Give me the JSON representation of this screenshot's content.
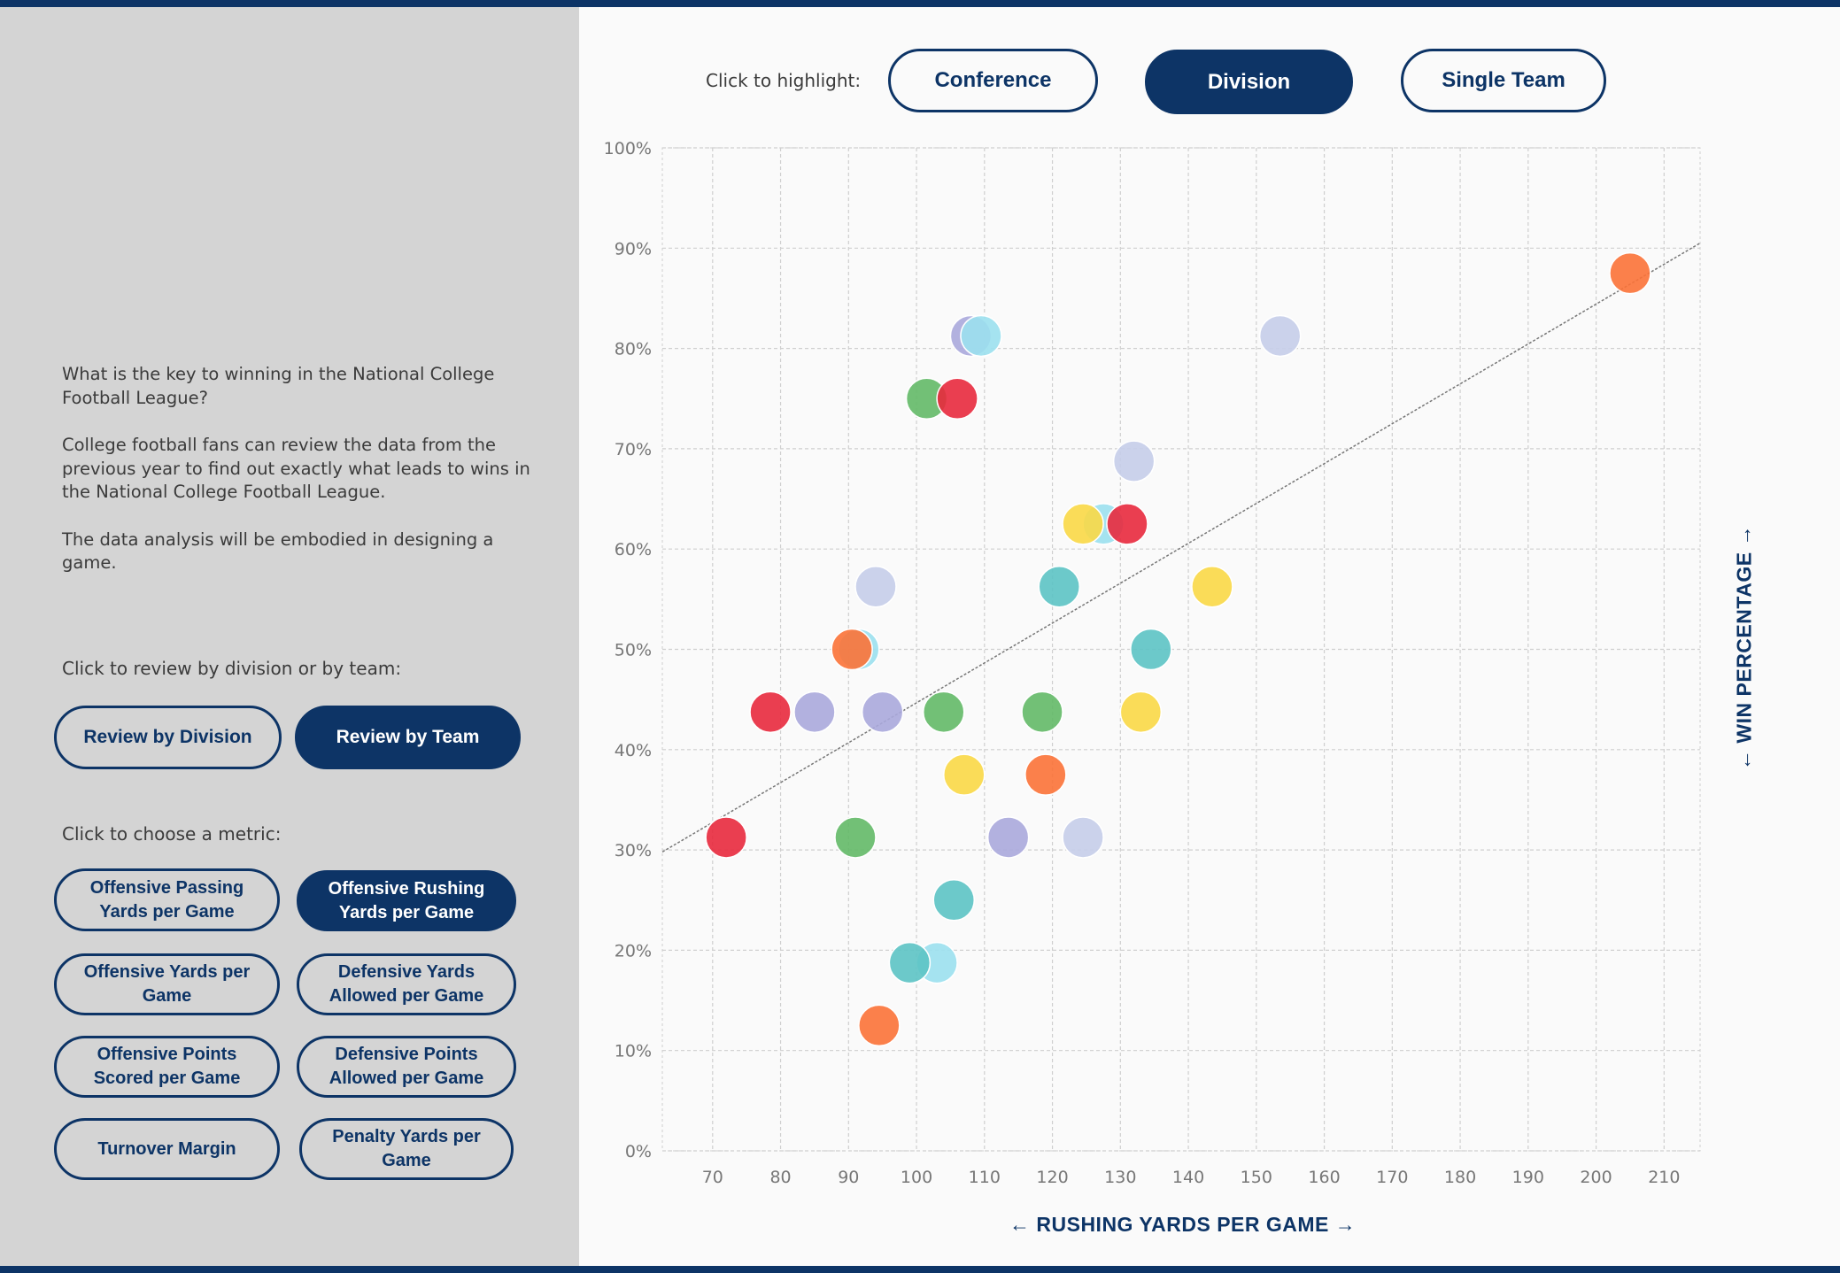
{
  "intro": {
    "paragraphs": [
      "What is  the  key to  winning  in the National College Football League?",
      "College football fans can review the data from the previous  year to  find out exactly what leads to wins in the National College Football League.",
      "The data analysis will be embodied in designing a game."
    ]
  },
  "review": {
    "label": "Click to review by division or by team:",
    "by_division": "Review by Division",
    "by_team": "Review by Team",
    "selected": "by_team"
  },
  "metric": {
    "label": "Click to choose a metric:",
    "options": [
      "Offensive Passing Yards per Game",
      "Offensive Rushing Yards per Game",
      "Offensive Yards per Game",
      "Defensive Yards Allowed per Game",
      "Offensive Points Scored per Game",
      "Defensive Points Allowed per Game",
      "Turnover Margin",
      "Penalty Yards per Game"
    ],
    "selected_index": 1
  },
  "highlight": {
    "label": "Click to highlight:",
    "options": [
      "Conference",
      "Division",
      "Single Team"
    ],
    "selected_index": 1
  },
  "chart_data": {
    "type": "scatter",
    "xlabel": "RUSHING YARDS PER GAME",
    "ylabel": "WIN PERCENTAGE",
    "xlim": [
      62.6,
      215.3
    ],
    "ylim": [
      0,
      1
    ],
    "xticks": [
      70,
      80,
      90,
      100,
      110,
      120,
      130,
      140,
      150,
      160,
      170,
      180,
      190,
      200,
      210
    ],
    "yticks": [
      0,
      0.1,
      0.2,
      0.3,
      0.4,
      0.5,
      0.6,
      0.7,
      0.8,
      0.9,
      1.0
    ],
    "ytick_labels": [
      "0%",
      "10%",
      "20%",
      "30%",
      "40%",
      "50%",
      "60%",
      "70%",
      "80%",
      "90%",
      "100%"
    ],
    "grid": true,
    "trendline": {
      "x": [
        62.6,
        215.3
      ],
      "y": [
        0.298,
        0.905
      ]
    },
    "colors": {
      "red": "#e8293d",
      "orange": "#fb7237",
      "yellow": "#fad846",
      "green": "#63b967",
      "teal": "#5cc3c4",
      "lightblue": "#9be0ee",
      "lavender": "#aaa8db",
      "periwinkle": "#c5cde9"
    },
    "points": [
      {
        "x": 205.0,
        "y": 0.875,
        "c": "orange"
      },
      {
        "x": 153.5,
        "y": 0.8125,
        "c": "periwinkle"
      },
      {
        "x": 108.0,
        "y": 0.8125,
        "c": "lavender"
      },
      {
        "x": 109.5,
        "y": 0.8125,
        "c": "lightblue"
      },
      {
        "x": 101.5,
        "y": 0.75,
        "c": "green"
      },
      {
        "x": 106.0,
        "y": 0.75,
        "c": "red"
      },
      {
        "x": 132.0,
        "y": 0.6875,
        "c": "periwinkle"
      },
      {
        "x": 127.5,
        "y": 0.625,
        "c": "lightblue"
      },
      {
        "x": 124.5,
        "y": 0.625,
        "c": "yellow"
      },
      {
        "x": 131.0,
        "y": 0.625,
        "c": "red"
      },
      {
        "x": 94.0,
        "y": 0.5625,
        "c": "periwinkle"
      },
      {
        "x": 121.0,
        "y": 0.5625,
        "c": "teal"
      },
      {
        "x": 143.5,
        "y": 0.5625,
        "c": "yellow"
      },
      {
        "x": 91.5,
        "y": 0.5,
        "c": "lightblue"
      },
      {
        "x": 90.5,
        "y": 0.5,
        "c": "orange"
      },
      {
        "x": 134.5,
        "y": 0.5,
        "c": "teal"
      },
      {
        "x": 78.5,
        "y": 0.4375,
        "c": "red"
      },
      {
        "x": 85.0,
        "y": 0.4375,
        "c": "lavender"
      },
      {
        "x": 95.0,
        "y": 0.4375,
        "c": "lavender"
      },
      {
        "x": 104.0,
        "y": 0.4375,
        "c": "green"
      },
      {
        "x": 118.5,
        "y": 0.4375,
        "c": "green"
      },
      {
        "x": 133.0,
        "y": 0.4375,
        "c": "yellow"
      },
      {
        "x": 107.0,
        "y": 0.375,
        "c": "yellow"
      },
      {
        "x": 119.0,
        "y": 0.375,
        "c": "orange"
      },
      {
        "x": 72.0,
        "y": 0.3125,
        "c": "red"
      },
      {
        "x": 91.0,
        "y": 0.3125,
        "c": "green"
      },
      {
        "x": 113.5,
        "y": 0.3125,
        "c": "lavender"
      },
      {
        "x": 124.5,
        "y": 0.3125,
        "c": "periwinkle"
      },
      {
        "x": 105.5,
        "y": 0.25,
        "c": "teal"
      },
      {
        "x": 103.0,
        "y": 0.1875,
        "c": "lightblue"
      },
      {
        "x": 99.0,
        "y": 0.1875,
        "c": "teal"
      },
      {
        "x": 94.5,
        "y": 0.125,
        "c": "orange"
      }
    ]
  }
}
